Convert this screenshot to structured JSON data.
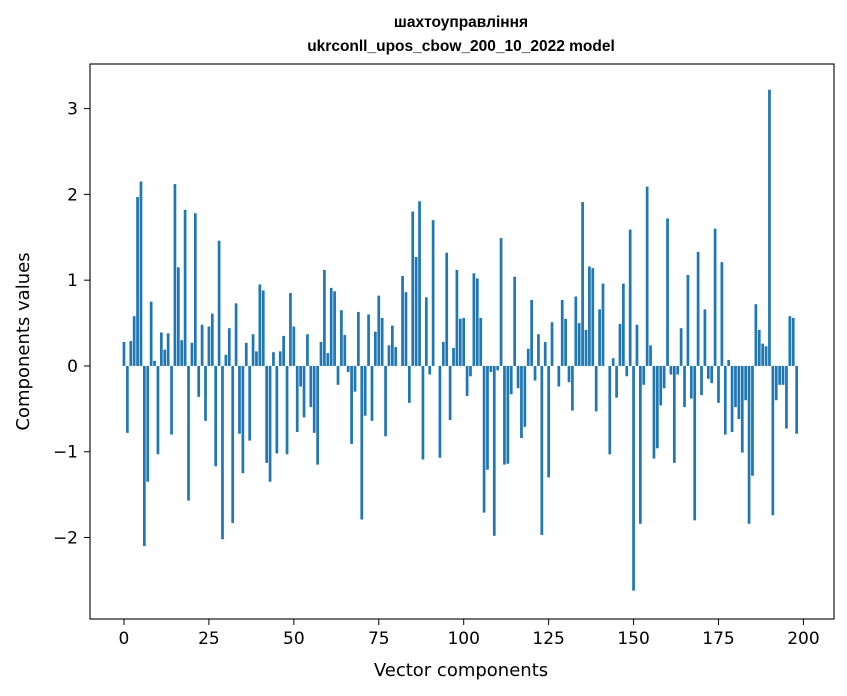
{
  "chart_data": {
    "type": "bar",
    "title": "шахтоуправління",
    "subtitle": "ukrconll_upos_cbow_200_10_2022 model",
    "xlabel": "Vector components",
    "ylabel": "Components values",
    "xlim": [
      -10,
      209
    ],
    "ylim": [
      -2.95,
      3.52
    ],
    "xticks": [
      0,
      25,
      50,
      75,
      100,
      125,
      150,
      175,
      200
    ],
    "yticks": [
      -2,
      -1,
      0,
      1,
      2,
      3
    ],
    "xtick_labels": [
      "0",
      "25",
      "50",
      "75",
      "100",
      "125",
      "150",
      "175",
      "200"
    ],
    "ytick_labels": [
      "−2",
      "−1",
      "0",
      "1",
      "2",
      "3"
    ],
    "grid": false,
    "bar_color": "#1f77b4",
    "values": [
      0.28,
      -0.78,
      0.29,
      0.58,
      1.97,
      2.15,
      -2.1,
      -1.35,
      0.75,
      0.06,
      -1.03,
      0.39,
      0.19,
      0.38,
      -0.8,
      2.12,
      1.15,
      0.3,
      1.82,
      -1.57,
      0.27,
      1.78,
      -0.36,
      0.48,
      -0.64,
      0.46,
      0.61,
      -1.17,
      1.46,
      -2.02,
      0.13,
      0.44,
      -1.83,
      0.73,
      -0.79,
      -1.25,
      0.27,
      -0.87,
      0.37,
      0.17,
      0.95,
      0.88,
      -1.13,
      -1.35,
      0.16,
      -1.02,
      0.17,
      0.35,
      -1.03,
      0.85,
      0.46,
      -0.77,
      -0.24,
      -0.6,
      0.37,
      -0.48,
      -0.78,
      -1.15,
      0.28,
      1.12,
      0.15,
      0.91,
      0.87,
      -0.22,
      0.65,
      0.36,
      -0.07,
      -0.91,
      -0.3,
      0.63,
      -1.79,
      -0.58,
      0.6,
      -0.64,
      0.4,
      0.82,
      0.56,
      -0.82,
      0.24,
      0.47,
      0.22,
      0.0,
      1.05,
      0.86,
      -0.43,
      1.8,
      1.27,
      1.92,
      -1.09,
      0.8,
      -0.1,
      1.7,
      0.0,
      -1.07,
      0.28,
      1.32,
      -0.63,
      0.21,
      1.12,
      0.55,
      0.56,
      -0.35,
      -0.12,
      1.08,
      1.02,
      0.56,
      -1.71,
      -1.21,
      -0.07,
      -1.98,
      -0.05,
      1.49,
      -1.15,
      -1.14,
      -0.33,
      1.04,
      -0.26,
      -0.84,
      -0.71,
      0.2,
      0.77,
      -0.17,
      0.37,
      -1.97,
      0.28,
      -1.3,
      0.51,
      0.0,
      -0.24,
      0.77,
      0.55,
      -0.19,
      -0.52,
      0.81,
      0.5,
      1.91,
      0.42,
      1.16,
      1.14,
      -0.53,
      0.66,
      0.96,
      0.0,
      -1.03,
      0.09,
      -0.37,
      0.49,
      0.96,
      -0.12,
      1.59,
      -2.62,
      0.48,
      -1.84,
      -0.22,
      2.09,
      0.24,
      -1.08,
      -0.96,
      -0.46,
      -0.26,
      1.72,
      -0.1,
      -1.13,
      -0.1,
      0.44,
      -0.48,
      1.06,
      -0.38,
      -1.8,
      1.33,
      -0.34,
      0.66,
      -0.15,
      -0.2,
      1.6,
      -0.43,
      1.21,
      -0.8,
      0.07,
      -0.77,
      -0.48,
      -0.62,
      -1.01,
      -0.4,
      -1.84,
      -1.28,
      0.72,
      0.42,
      0.26,
      0.23,
      3.22,
      -1.74,
      -0.4,
      -0.22,
      -0.22,
      -0.73,
      0.58,
      0.56,
      -0.79
    ]
  }
}
